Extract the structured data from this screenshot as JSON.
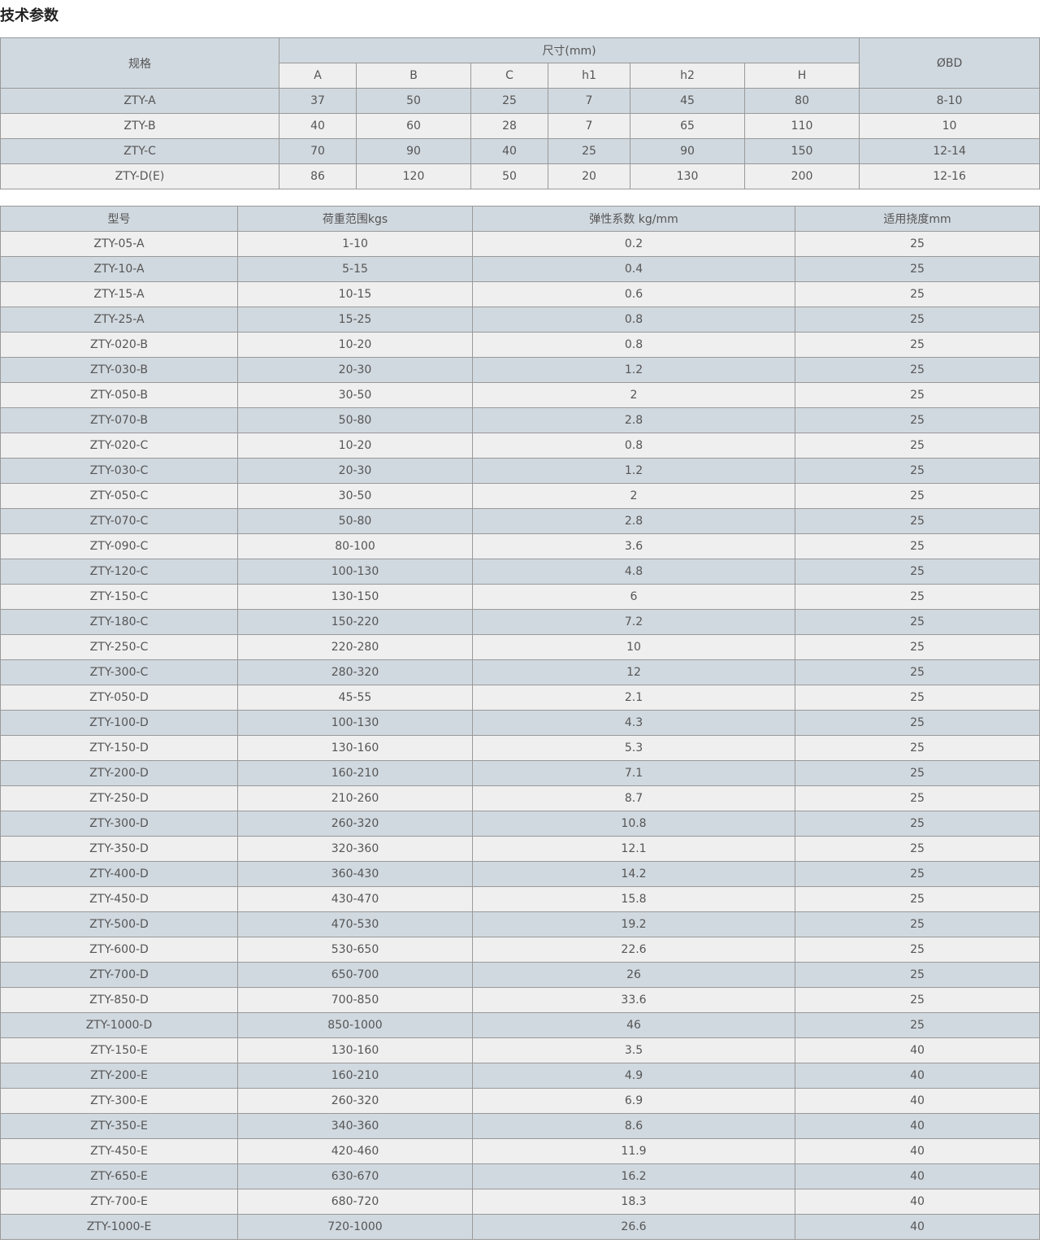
{
  "title": "技术参数",
  "dim_table": {
    "spec_header": "规格",
    "size_header": "尺寸(mm)",
    "bd_header": "ØBD",
    "sub_headers": [
      "A",
      "B",
      "C",
      "h1",
      "h2",
      "H"
    ],
    "rows": [
      [
        "ZTY-A",
        "37",
        "50",
        "25",
        "7",
        "45",
        "80",
        "8-10"
      ],
      [
        "ZTY-B",
        "40",
        "60",
        "28",
        "7",
        "65",
        "110",
        "10"
      ],
      [
        "ZTY-C",
        "70",
        "90",
        "40",
        "25",
        "90",
        "150",
        "12-14"
      ],
      [
        "ZTY-D(E)",
        "86",
        "120",
        "50",
        "20",
        "130",
        "200",
        "12-16"
      ]
    ]
  },
  "model_table": {
    "headers": [
      "型号",
      "荷重范围kgs",
      "弹性系数 kg/mm",
      "适用挠度mm"
    ],
    "rows": [
      [
        "ZTY-05-A",
        "1-10",
        "0.2",
        "25"
      ],
      [
        "ZTY-10-A",
        "5-15",
        "0.4",
        "25"
      ],
      [
        "ZTY-15-A",
        "10-15",
        "0.6",
        "25"
      ],
      [
        "ZTY-25-A",
        "15-25",
        "0.8",
        "25"
      ],
      [
        "ZTY-020-B",
        "10-20",
        "0.8",
        "25"
      ],
      [
        "ZTY-030-B",
        "20-30",
        "1.2",
        "25"
      ],
      [
        "ZTY-050-B",
        "30-50",
        "2",
        "25"
      ],
      [
        "ZTY-070-B",
        "50-80",
        "2.8",
        "25"
      ],
      [
        "ZTY-020-C",
        "10-20",
        "0.8",
        "25"
      ],
      [
        "ZTY-030-C",
        "20-30",
        "1.2",
        "25"
      ],
      [
        "ZTY-050-C",
        "30-50",
        "2",
        "25"
      ],
      [
        "ZTY-070-C",
        "50-80",
        "2.8",
        "25"
      ],
      [
        "ZTY-090-C",
        "80-100",
        "3.6",
        "25"
      ],
      [
        "ZTY-120-C",
        "100-130",
        "4.8",
        "25"
      ],
      [
        "ZTY-150-C",
        "130-150",
        "6",
        "25"
      ],
      [
        "ZTY-180-C",
        "150-220",
        "7.2",
        "25"
      ],
      [
        "ZTY-250-C",
        "220-280",
        "10",
        "25"
      ],
      [
        "ZTY-300-C",
        "280-320",
        "12",
        "25"
      ],
      [
        "ZTY-050-D",
        "45-55",
        "2.1",
        "25"
      ],
      [
        "ZTY-100-D",
        "100-130",
        "4.3",
        "25"
      ],
      [
        "ZTY-150-D",
        "130-160",
        "5.3",
        "25"
      ],
      [
        "ZTY-200-D",
        "160-210",
        "7.1",
        "25"
      ],
      [
        "ZTY-250-D",
        "210-260",
        "8.7",
        "25"
      ],
      [
        "ZTY-300-D",
        "260-320",
        "10.8",
        "25"
      ],
      [
        "ZTY-350-D",
        "320-360",
        "12.1",
        "25"
      ],
      [
        "ZTY-400-D",
        "360-430",
        "14.2",
        "25"
      ],
      [
        "ZTY-450-D",
        "430-470",
        "15.8",
        "25"
      ],
      [
        "ZTY-500-D",
        "470-530",
        "19.2",
        "25"
      ],
      [
        "ZTY-600-D",
        "530-650",
        "22.6",
        "25"
      ],
      [
        "ZTY-700-D",
        "650-700",
        "26",
        "25"
      ],
      [
        "ZTY-850-D",
        "700-850",
        "33.6",
        "25"
      ],
      [
        "ZTY-1000-D",
        "850-1000",
        "46",
        "25"
      ],
      [
        "ZTY-150-E",
        "130-160",
        "3.5",
        "40"
      ],
      [
        "ZTY-200-E",
        "160-210",
        "4.9",
        "40"
      ],
      [
        "ZTY-300-E",
        "260-320",
        "6.9",
        "40"
      ],
      [
        "ZTY-350-E",
        "340-360",
        "8.6",
        "40"
      ],
      [
        "ZTY-450-E",
        "420-460",
        "11.9",
        "40"
      ],
      [
        "ZTY-650-E",
        "630-670",
        "16.2",
        "40"
      ],
      [
        "ZTY-700-E",
        "680-720",
        "18.3",
        "40"
      ],
      [
        "ZTY-1000-E",
        "720-1000",
        "26.6",
        "40"
      ]
    ]
  },
  "colors": {
    "header_bg": "#d1d9e0",
    "row_light": "#efefef",
    "border": "#999999"
  }
}
